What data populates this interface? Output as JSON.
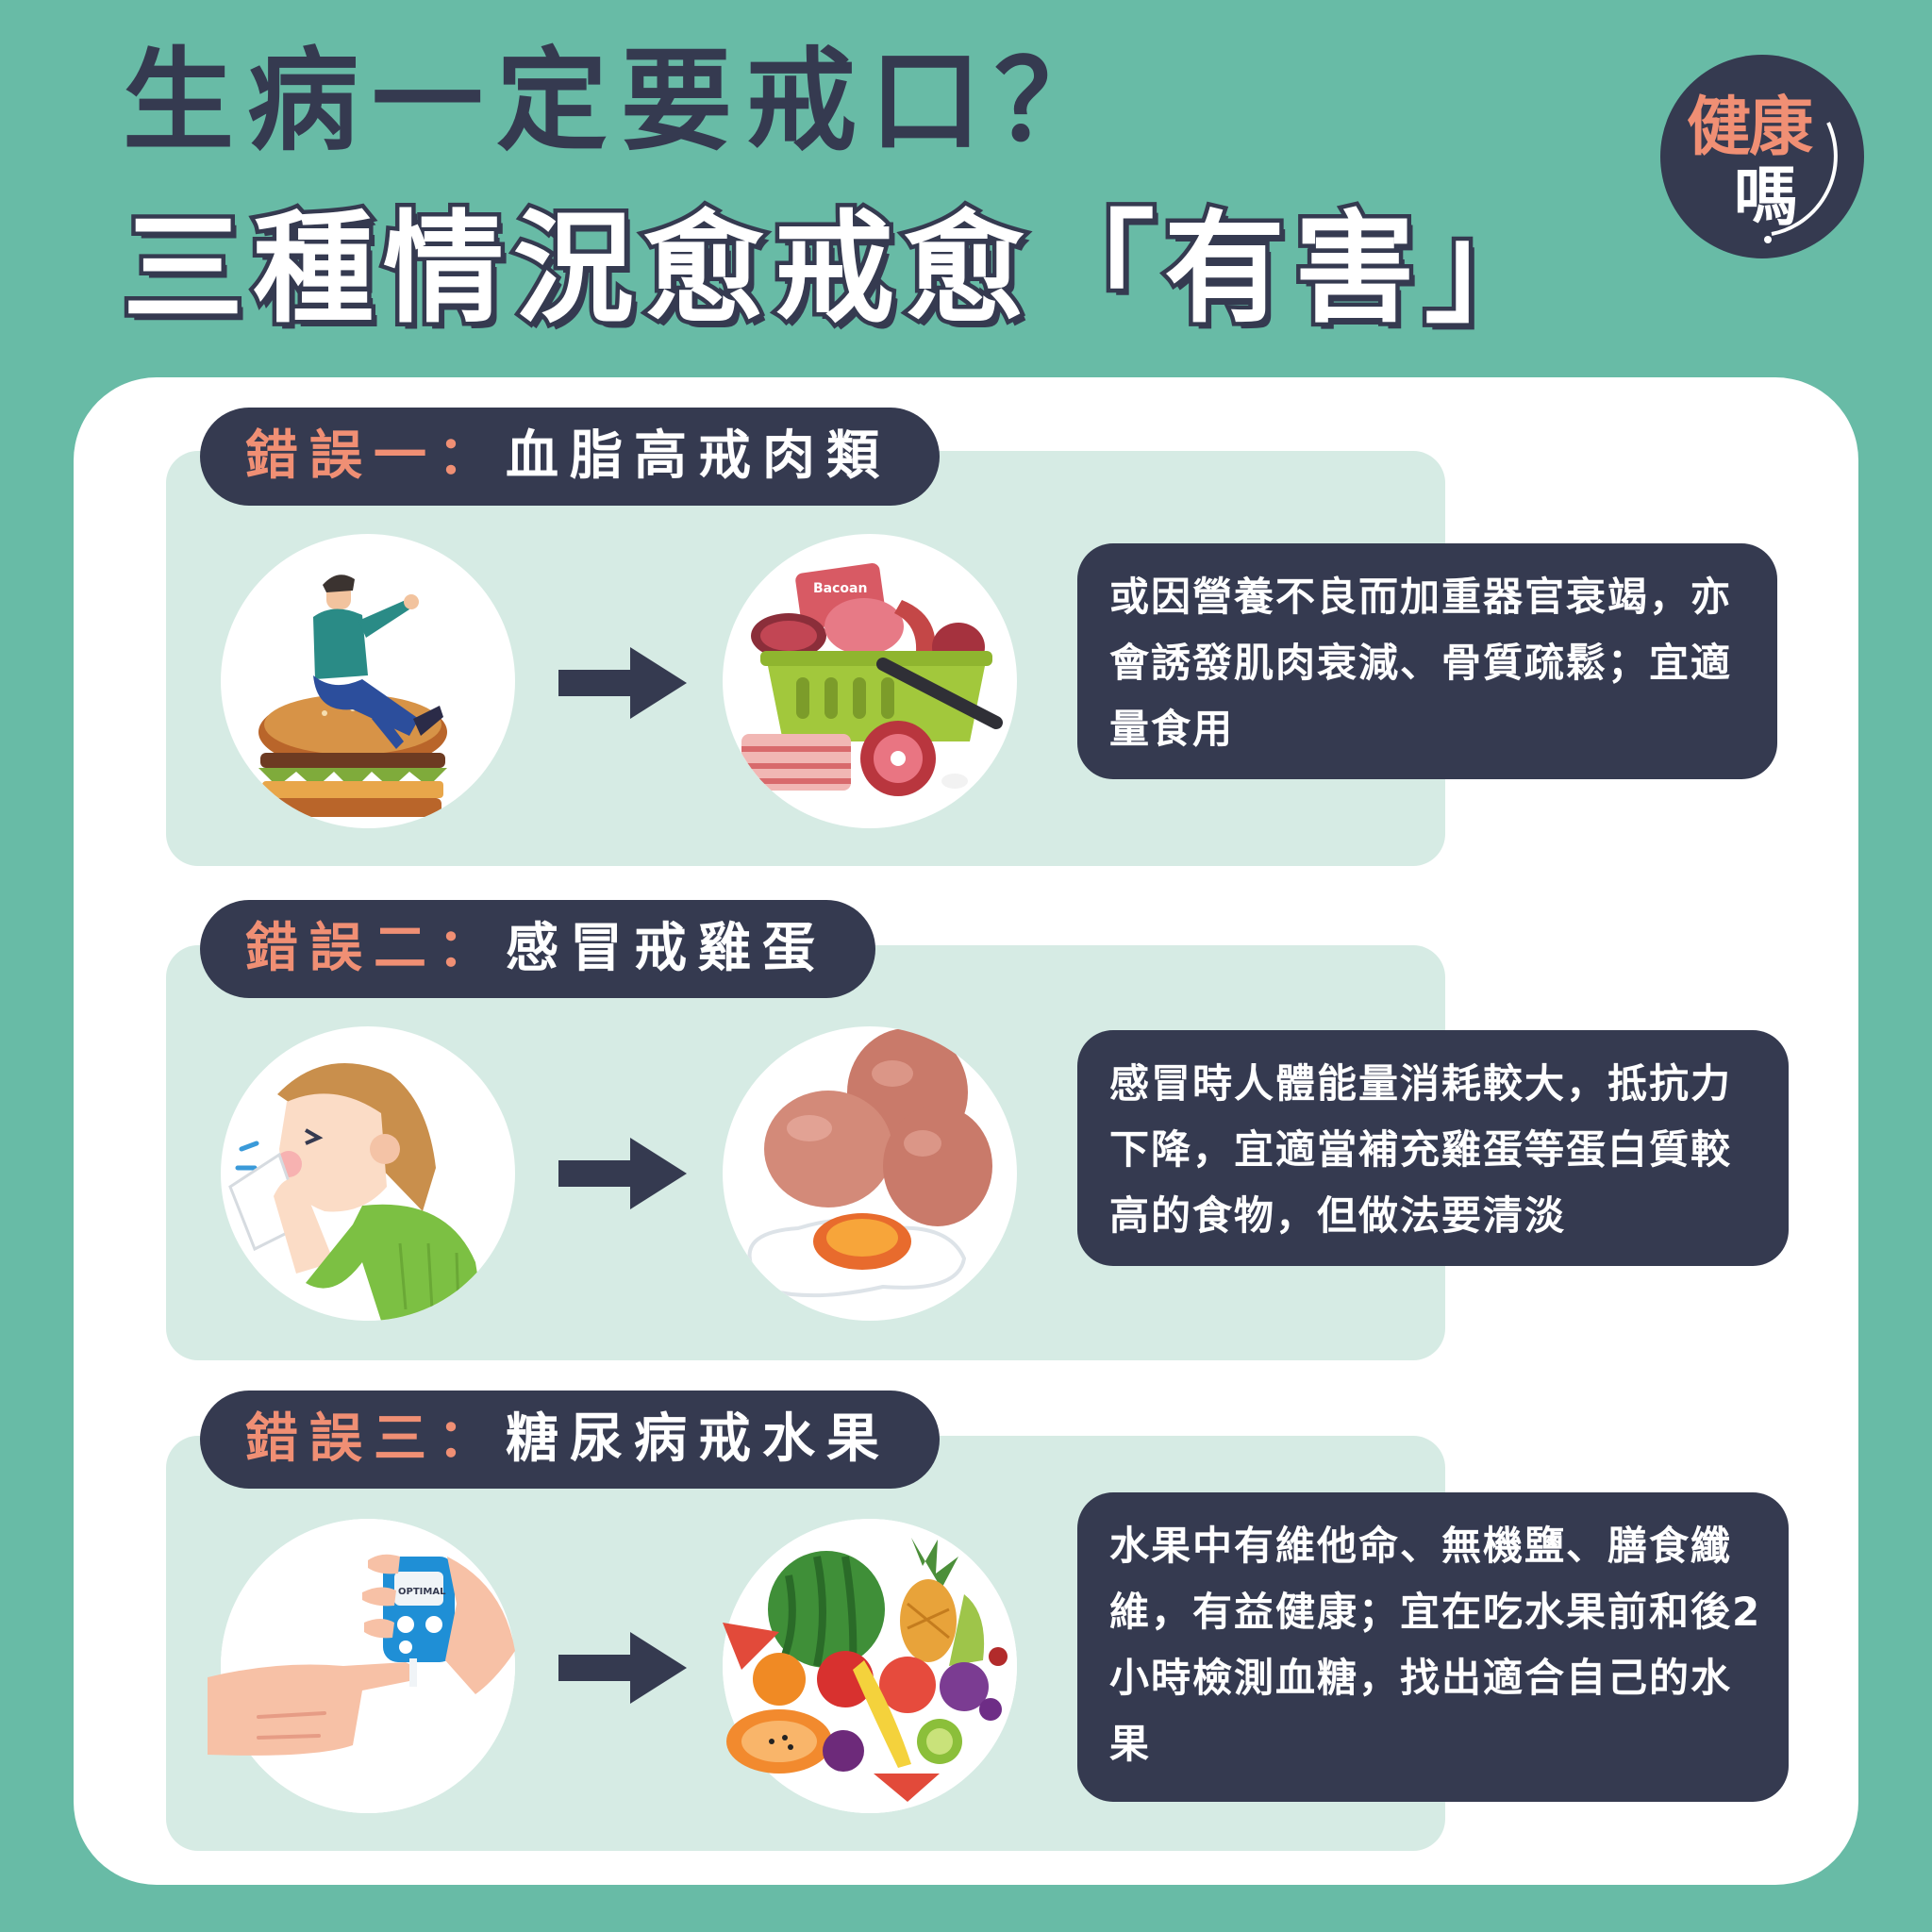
{
  "title": {
    "line1": "生病一定要戒口？",
    "line2": "三種情況愈戒愈「有害」"
  },
  "logo": {
    "line1": "健康",
    "line2": "嗎"
  },
  "sections": [
    {
      "label": "錯誤一：",
      "title": "血脂高戒肉類",
      "text": "或因營養不良而加重器官衰竭，亦會誘發肌肉衰減、骨質疏鬆；宜適量食用",
      "icons": [
        "man-on-burger-icon",
        "meat-basket-icon"
      ],
      "bacon_label": "Bacoan"
    },
    {
      "label": "錯誤二：",
      "title": "感冒戒雞蛋",
      "text": "感冒時人體能量消耗較大，抵抗力下降，宜適當補充雞蛋等蛋白質較高的食物，但做法要清淡",
      "icons": [
        "sneezing-woman-icon",
        "eggs-icon"
      ]
    },
    {
      "label": "錯誤三：",
      "title": "糖尿病戒水果",
      "text": "水果中有維他命、無機鹽、膳食纖維，有益健康；宜在吃水果前和後2小時檢測血糖，找出適合自己的水果",
      "icons": [
        "glucose-meter-icon",
        "fruit-pile-icon"
      ],
      "meter_label": "OPTIMAL"
    }
  ],
  "colors": {
    "background": "#68bba6",
    "dark": "#353a50",
    "accent": "#f08f74",
    "panel": "#d6ebe4"
  }
}
